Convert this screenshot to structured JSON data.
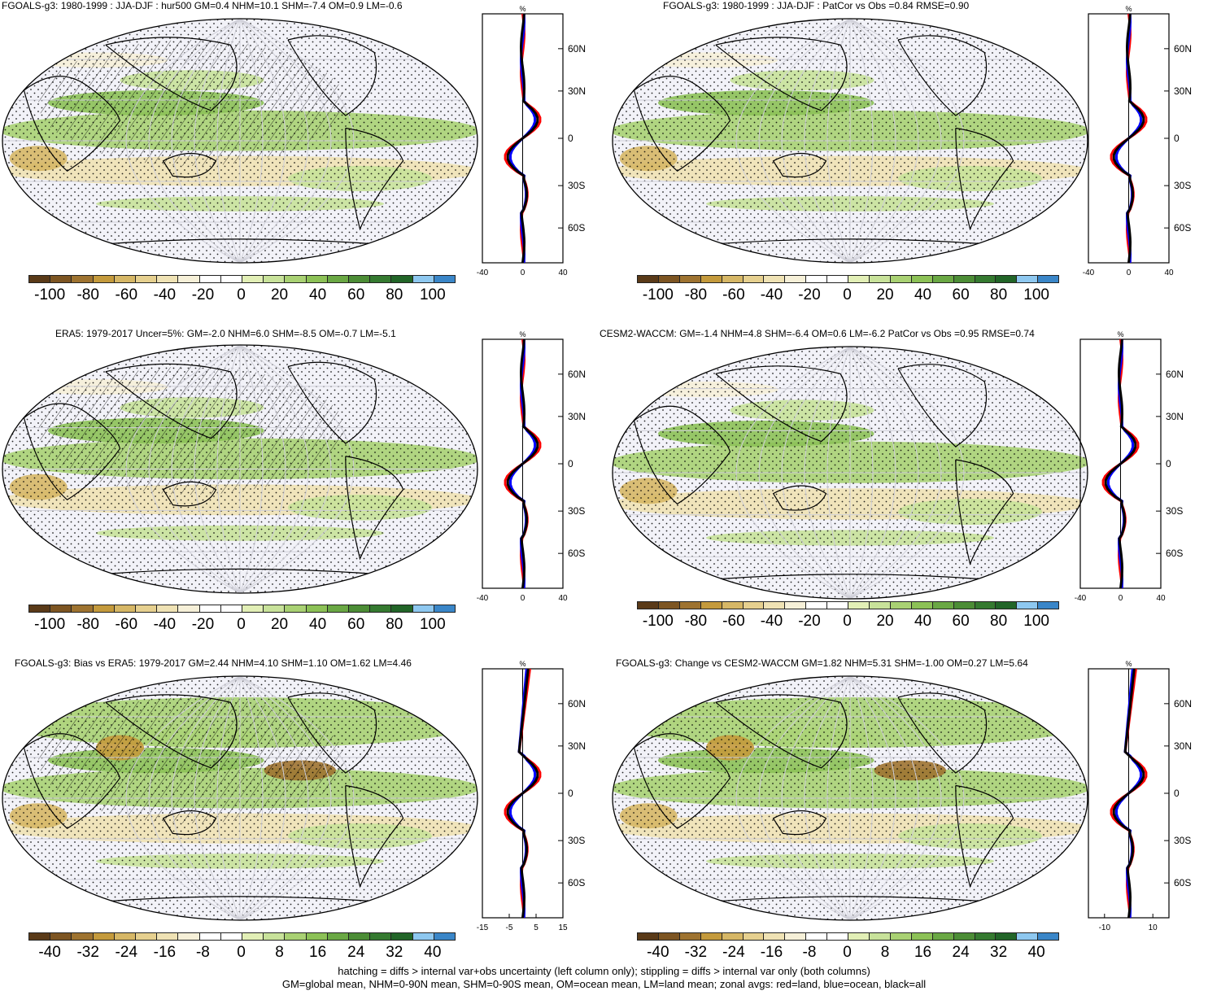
{
  "panels": [
    {
      "title": "FGOALS-g3: 1980-1999 : JJA-DJF : hur500 GM=0.4 NHM=10.1 SHM=-7.4 OM=0.9 LM=-0.6",
      "colorbar_labels": [
        "-100",
        "-80",
        "-60",
        "-40",
        "-20",
        "0",
        "20",
        "40",
        "60",
        "80",
        "100"
      ],
      "zonal_x_ticks": [
        "-40",
        "0",
        "40"
      ],
      "zonal_lat_labels": [
        "60N",
        "30N",
        "0",
        "30S",
        "60S"
      ],
      "zonal_unit": "%",
      "hatching": true
    },
    {
      "title": "FGOALS-g3: 1980-1999 : JJA-DJF : PatCor vs Obs =0.84 RMSE=0.90",
      "colorbar_labels": [
        "-100",
        "-80",
        "-60",
        "-40",
        "-20",
        "0",
        "20",
        "40",
        "60",
        "80",
        "100"
      ],
      "zonal_x_ticks": [
        "-40",
        "0",
        "40"
      ],
      "zonal_lat_labels": [
        "60N",
        "30N",
        "0",
        "30S",
        "60S"
      ],
      "zonal_unit": "%",
      "hatching": false
    },
    {
      "title": "ERA5: 1979-2017 Uncer=5%: GM=-2.0 NHM=6.0 SHM=-8.5 OM=-0.7 LM=-5.1",
      "colorbar_labels": [
        "-100",
        "-80",
        "-60",
        "-40",
        "-20",
        "0",
        "20",
        "40",
        "60",
        "80",
        "100"
      ],
      "zonal_x_ticks": [
        "-40",
        "0",
        "40"
      ],
      "zonal_lat_labels": [
        "60N",
        "30N",
        "0",
        "30S",
        "60S"
      ],
      "zonal_unit": "%",
      "hatching": true
    },
    {
      "title": "CESM2-WACCM: GM=-1.4 NHM=4.8 SHM=-6.4 OM=0.6 LM=-6.2 PatCor vs Obs =0.95 RMSE=0.74",
      "colorbar_labels": [
        "-100",
        "-80",
        "-60",
        "-40",
        "-20",
        "0",
        "20",
        "40",
        "60",
        "80",
        "100"
      ],
      "zonal_x_ticks": [
        "-40",
        "0",
        "40"
      ],
      "zonal_lat_labels": [
        "60N",
        "30N",
        "0",
        "30S",
        "60S"
      ],
      "zonal_unit": "%",
      "hatching": false
    },
    {
      "title": "FGOALS-g3: Bias vs ERA5: 1979-2017 GM=2.44 NHM=4.10 SHM=1.10 OM=1.62 LM=4.46",
      "colorbar_labels": [
        "-40",
        "-32",
        "-24",
        "-16",
        "-8",
        "0",
        "8",
        "16",
        "24",
        "32",
        "40"
      ],
      "zonal_x_ticks": [
        "-15",
        "-5",
        "5",
        "15"
      ],
      "zonal_lat_labels": [
        "60N",
        "30N",
        "0",
        "30S",
        "60S"
      ],
      "zonal_unit": "%",
      "hatching": true
    },
    {
      "title": "FGOALS-g3: Change vs CESM2-WACCM GM=1.82 NHM=5.31 SHM=-1.00 OM=0.27 LM=5.64",
      "colorbar_labels": [
        "-40",
        "-32",
        "-24",
        "-16",
        "-8",
        "0",
        "8",
        "16",
        "24",
        "32",
        "40"
      ],
      "zonal_x_ticks": [
        "-10",
        "10"
      ],
      "zonal_lat_labels": [
        "60N",
        "30N",
        "0",
        "30S",
        "60S"
      ],
      "zonal_unit": "%",
      "hatching": false
    }
  ],
  "colorbar_colors": [
    "#5a3a18",
    "#7d5522",
    "#9e7330",
    "#c49a3c",
    "#d6b766",
    "#e6d08f",
    "#efe2b4",
    "#f6f0d8",
    "#ffffff",
    "#ffffff",
    "#e2efb6",
    "#c8e29a",
    "#a9d173",
    "#8cc156",
    "#6aa844",
    "#4c8d36",
    "#357a30",
    "#226528",
    "#8ec8f0",
    "#3a86c8"
  ],
  "line_colors": {
    "land": "#ff0000",
    "ocean": "#0000ff",
    "all": "#000000"
  },
  "footer_lines": [
    "hatching = diffs > internal var+obs uncertainty (left column only); stippling = diffs > internal var only (both columns)",
    "GM=global mean, NHM=0-90N mean, SHM=0-90S mean, OM=ocean mean, LM=land mean; zonal avgs: red=land, blue=ocean, black=all"
  ]
}
